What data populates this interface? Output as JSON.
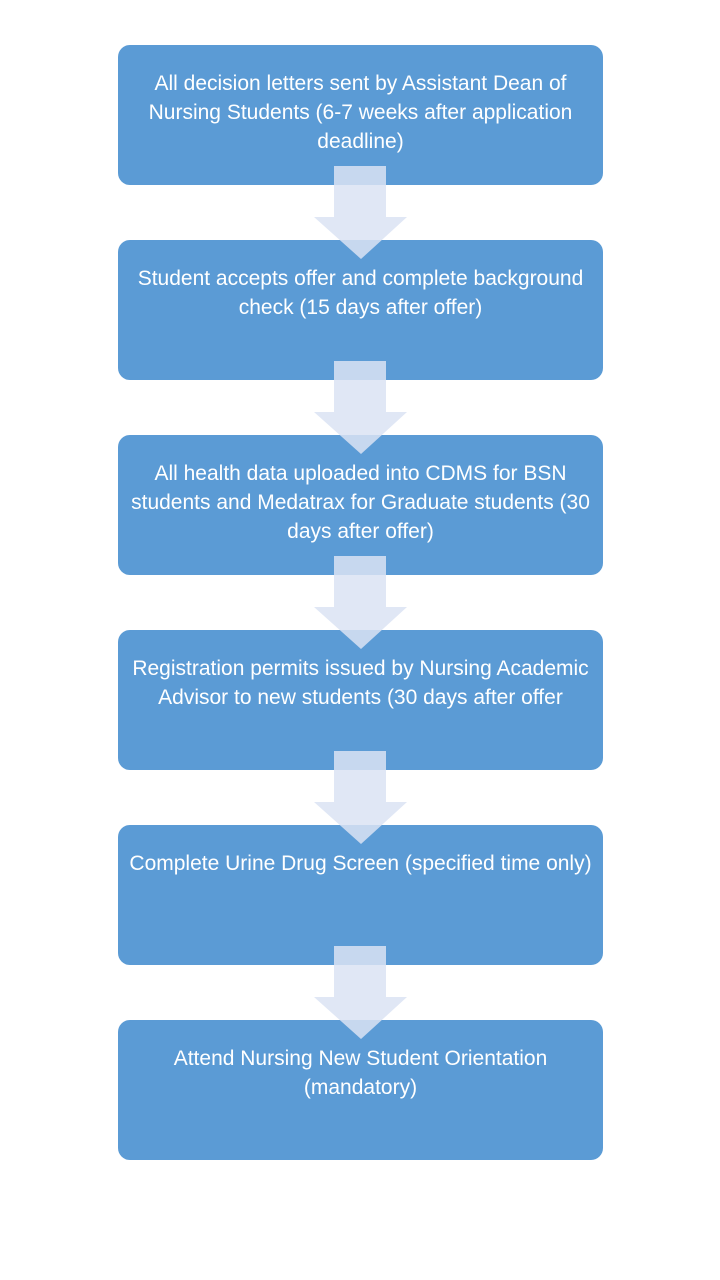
{
  "colors": {
    "box": "#5b9bd5",
    "arrow": "#dae3f3",
    "text": "#ffffff"
  },
  "steps": [
    {
      "text": "All decision letters sent by Assistant Dean of Nursing Students (6-7 weeks after application deadline)"
    },
    {
      "text": "Student accepts offer and complete background check (15 days after offer)"
    },
    {
      "text": "All health data uploaded into CDMS for BSN students and Medatrax for Graduate students (30 days after offer)"
    },
    {
      "text": "Registration permits issued by Nursing Academic Advisor to new students (30 days after offer"
    },
    {
      "text": "Complete Urine Drug Screen (specified time only)"
    },
    {
      "text": "Attend Nursing New Student Orientation (mandatory)"
    }
  ]
}
